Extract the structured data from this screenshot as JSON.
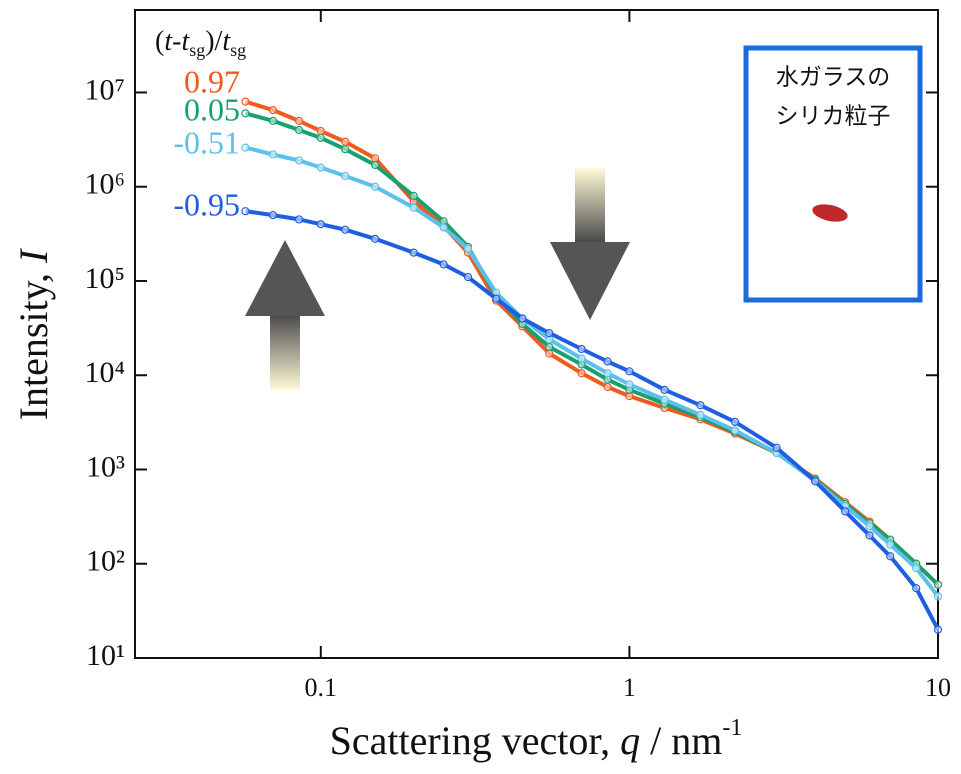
{
  "chart_data": {
    "type": "line",
    "log_x": true,
    "log_y": true,
    "x_label": [
      "Scattering vector, ",
      "q",
      " / nm",
      "-1"
    ],
    "y_label": [
      "Intensity, ",
      "I"
    ],
    "legend_title": [
      "(",
      "t",
      "-",
      "t",
      "sg",
      ")/",
      "t",
      "sg"
    ],
    "annotation": [
      "水ガラスの",
      "シリカ粒子"
    ],
    "xlim": [
      0.025,
      10
    ],
    "xticks": [
      0.1,
      1,
      10
    ],
    "ylim": [
      10,
      75000000
    ],
    "yticks": [
      {
        "value": 10,
        "label": "10¹"
      },
      {
        "value": 100,
        "label": "10²"
      },
      {
        "value": 1000,
        "label": "10³"
      },
      {
        "value": 10000,
        "label": "10⁴"
      },
      {
        "value": 100000,
        "label": "10⁵"
      },
      {
        "value": 1000000,
        "label": "10⁶"
      },
      {
        "value": 10000000,
        "label": "10⁷"
      }
    ],
    "x": [
      0.057,
      0.07,
      0.085,
      0.1,
      0.12,
      0.15,
      0.2,
      0.25,
      0.3,
      0.37,
      0.45,
      0.55,
      0.7,
      0.85,
      1,
      1.3,
      1.7,
      2.2,
      3,
      4,
      5,
      6,
      7,
      8.5,
      10
    ],
    "series": [
      {
        "name": "0.97",
        "color": "#f05a1e",
        "values": [
          8000000,
          6500000,
          5000000,
          3900000,
          3000000,
          2000000,
          700000,
          380000,
          200000,
          62000,
          33000,
          17000,
          10500,
          7500,
          6000,
          4500,
          3400,
          2400,
          1500,
          800,
          450,
          280,
          180,
          100,
          60
        ]
      },
      {
        "name": "0.05",
        "color": "#18a070",
        "values": [
          6000000,
          5000000,
          4000000,
          3300000,
          2500000,
          1700000,
          800000,
          430000,
          230000,
          70000,
          35000,
          20000,
          13000,
          9000,
          7000,
          5000,
          3600,
          2500,
          1500,
          780,
          430,
          270,
          180,
          100,
          60
        ]
      },
      {
        "name": "-0.51",
        "color": "#5cc0ea",
        "values": [
          2600000,
          2200000,
          1900000,
          1600000,
          1300000,
          1000000,
          600000,
          370000,
          220000,
          75000,
          40000,
          24000,
          15000,
          10500,
          8000,
          5500,
          3800,
          2600,
          1500,
          760,
          410,
          250,
          160,
          90,
          45
        ]
      },
      {
        "name": "-0.95",
        "color": "#1e5ee0",
        "values": [
          550000,
          500000,
          450000,
          400000,
          350000,
          280000,
          200000,
          150000,
          110000,
          65000,
          40000,
          28000,
          19000,
          14000,
          11000,
          7000,
          4800,
          3200,
          1700,
          750,
          360,
          200,
          120,
          55,
          20
        ]
      }
    ]
  }
}
